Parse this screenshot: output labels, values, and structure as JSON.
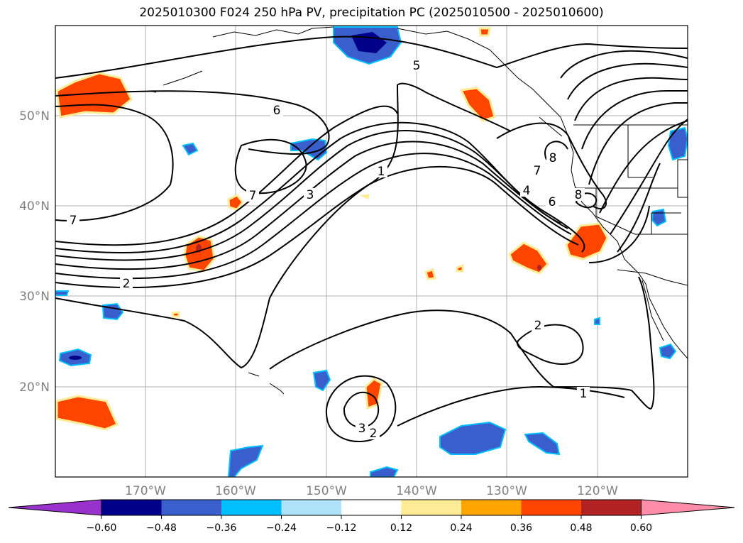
{
  "title": "2025010300 F024 250 hPa PV, precipitation PC (2025010500 - 2025010600)",
  "lat_labels": [
    "50°N",
    "40°N",
    "30°N",
    "20°N"
  ],
  "lon_labels": [
    "170°W",
    "160°W",
    "150°W",
    "140°W",
    "130°W",
    "120°W"
  ],
  "contour_labels": [
    "5",
    "6",
    "7",
    "7",
    "3",
    "1",
    "7",
    "4",
    "6",
    "8",
    "8",
    "2",
    "2",
    "1",
    "3",
    "2"
  ],
  "colorbar": {
    "ticks": [
      "−0.60",
      "−0.48",
      "−0.36",
      "−0.24",
      "−0.12",
      "0.12",
      "0.24",
      "0.36",
      "0.48",
      "0.60"
    ],
    "colors": [
      "#9932cc",
      "#00008b",
      "#3a5fcd",
      "#00bfff",
      "#aee2f8",
      "#ffffff",
      "#fdeb96",
      "#ffa500",
      "#ff4500",
      "#b22222",
      "#ff8ca8"
    ]
  }
}
